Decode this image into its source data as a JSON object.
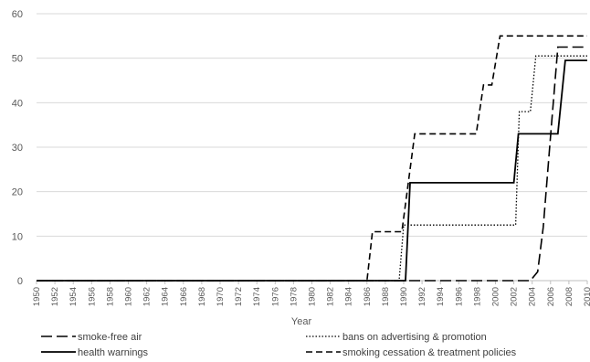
{
  "chart_data": {
    "type": "line",
    "title": "",
    "xlabel": "Year",
    "ylabel": "",
    "xlim": [
      1950,
      2010
    ],
    "ylim": [
      0,
      60
    ],
    "y_ticks": [
      "0",
      "10",
      "20",
      "30",
      "40",
      "50",
      "60"
    ],
    "x_ticks": [
      "1950",
      "1952",
      "1954",
      "1956",
      "1958",
      "1960",
      "1962",
      "1964",
      "1966",
      "1968",
      "1970",
      "1972",
      "1974",
      "1976",
      "1978",
      "1980",
      "1982",
      "1984",
      "1986",
      "1988",
      "1990",
      "1992",
      "1994",
      "1996",
      "1998",
      "2000",
      "2002",
      "2004",
      "2006",
      "2008",
      "2010"
    ],
    "grid": "horizontal",
    "legend_position": "bottom",
    "series": [
      {
        "name": "smoke-free air",
        "style": "longdash",
        "points": [
          [
            1950,
            0
          ],
          [
            2003.8,
            0
          ],
          [
            2004.6,
            2
          ],
          [
            2005.2,
            12
          ],
          [
            2006.1,
            35
          ],
          [
            2006.8,
            52.5
          ],
          [
            2010,
            52.5
          ]
        ]
      },
      {
        "name": "bans on advertising & promotion",
        "style": "dotted",
        "points": [
          [
            1950,
            0
          ],
          [
            1989.5,
            0
          ],
          [
            1990,
            12.5
          ],
          [
            2002.2,
            12.5
          ],
          [
            2002.6,
            38
          ],
          [
            2003.8,
            38
          ],
          [
            2004.4,
            50.5
          ],
          [
            2010,
            50.5
          ]
        ]
      },
      {
        "name": "health warnings",
        "style": "solid",
        "points": [
          [
            1950,
            0
          ],
          [
            1990.2,
            0
          ],
          [
            1990.7,
            22
          ],
          [
            2002,
            22
          ],
          [
            2002.5,
            33
          ],
          [
            2006.8,
            33
          ],
          [
            2007.6,
            49.5
          ],
          [
            2010,
            49.5
          ]
        ]
      },
      {
        "name": "smoking cessation & treatment policies",
        "style": "dashed",
        "points": [
          [
            1950,
            0
          ],
          [
            1986,
            0
          ],
          [
            1986.6,
            11
          ],
          [
            1989.8,
            11
          ],
          [
            1991.2,
            33
          ],
          [
            1997.9,
            33
          ],
          [
            1998.7,
            44
          ],
          [
            1999.6,
            44
          ],
          [
            2000.5,
            55
          ],
          [
            2010,
            55
          ]
        ]
      }
    ]
  }
}
